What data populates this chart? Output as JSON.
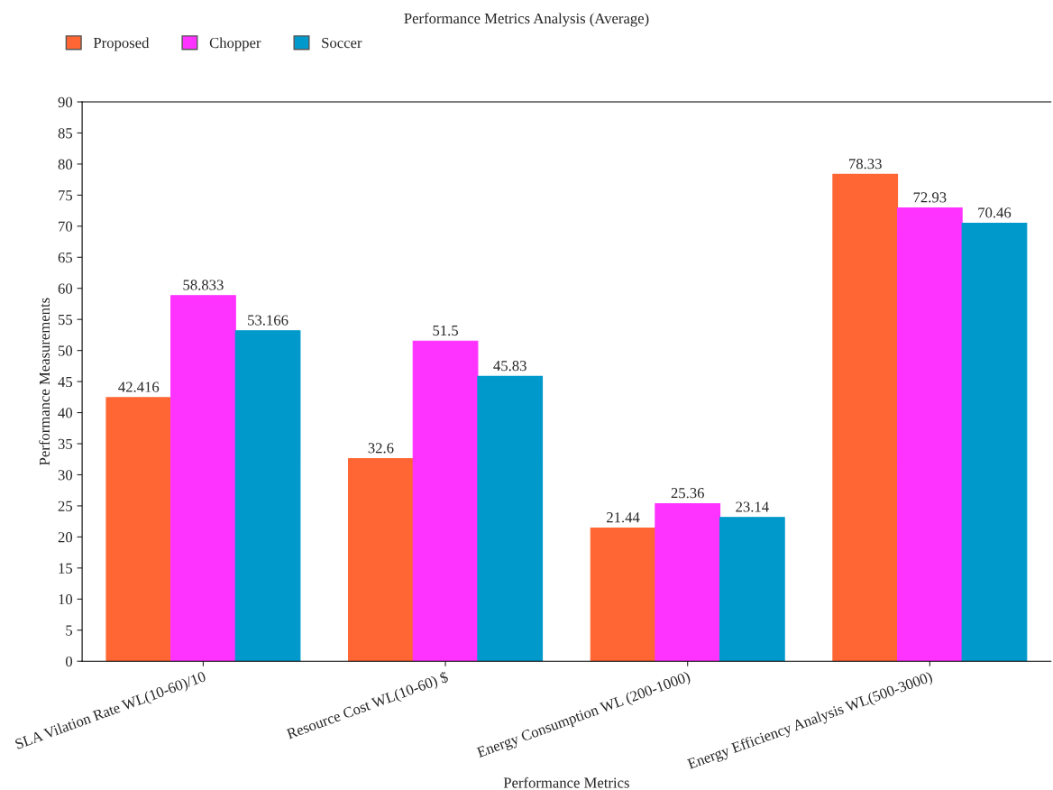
{
  "chart_data": {
    "type": "bar",
    "title": "Performance Metrics Analysis (Average)",
    "xlabel": "Performance Metrics",
    "ylabel": "Performance Measurements",
    "categories": [
      "SLA Vilation Rate WL(10-60)/10",
      "Resource Cost WL(10-60) $",
      "Energy Consumption WL (200-1000)",
      "Energy Efficiency Analysis WL(500-3000)"
    ],
    "series": [
      {
        "name": "Proposed",
        "color": "#ff6633",
        "values": [
          42.416,
          32.6,
          21.44,
          78.33
        ]
      },
      {
        "name": "Chopper",
        "color": "#ff33ff",
        "values": [
          58.833,
          51.5,
          25.36,
          72.93
        ]
      },
      {
        "name": "Soccer",
        "color": "#0099cc",
        "values": [
          53.166,
          45.83,
          23.14,
          70.46
        ]
      }
    ],
    "ylim": [
      0,
      90
    ],
    "yticks": [
      0,
      5,
      10,
      15,
      20,
      25,
      30,
      35,
      40,
      45,
      50,
      55,
      60,
      65,
      70,
      75,
      80,
      85,
      90
    ],
    "grid": false,
    "legend": "top left",
    "data_labels": true
  }
}
